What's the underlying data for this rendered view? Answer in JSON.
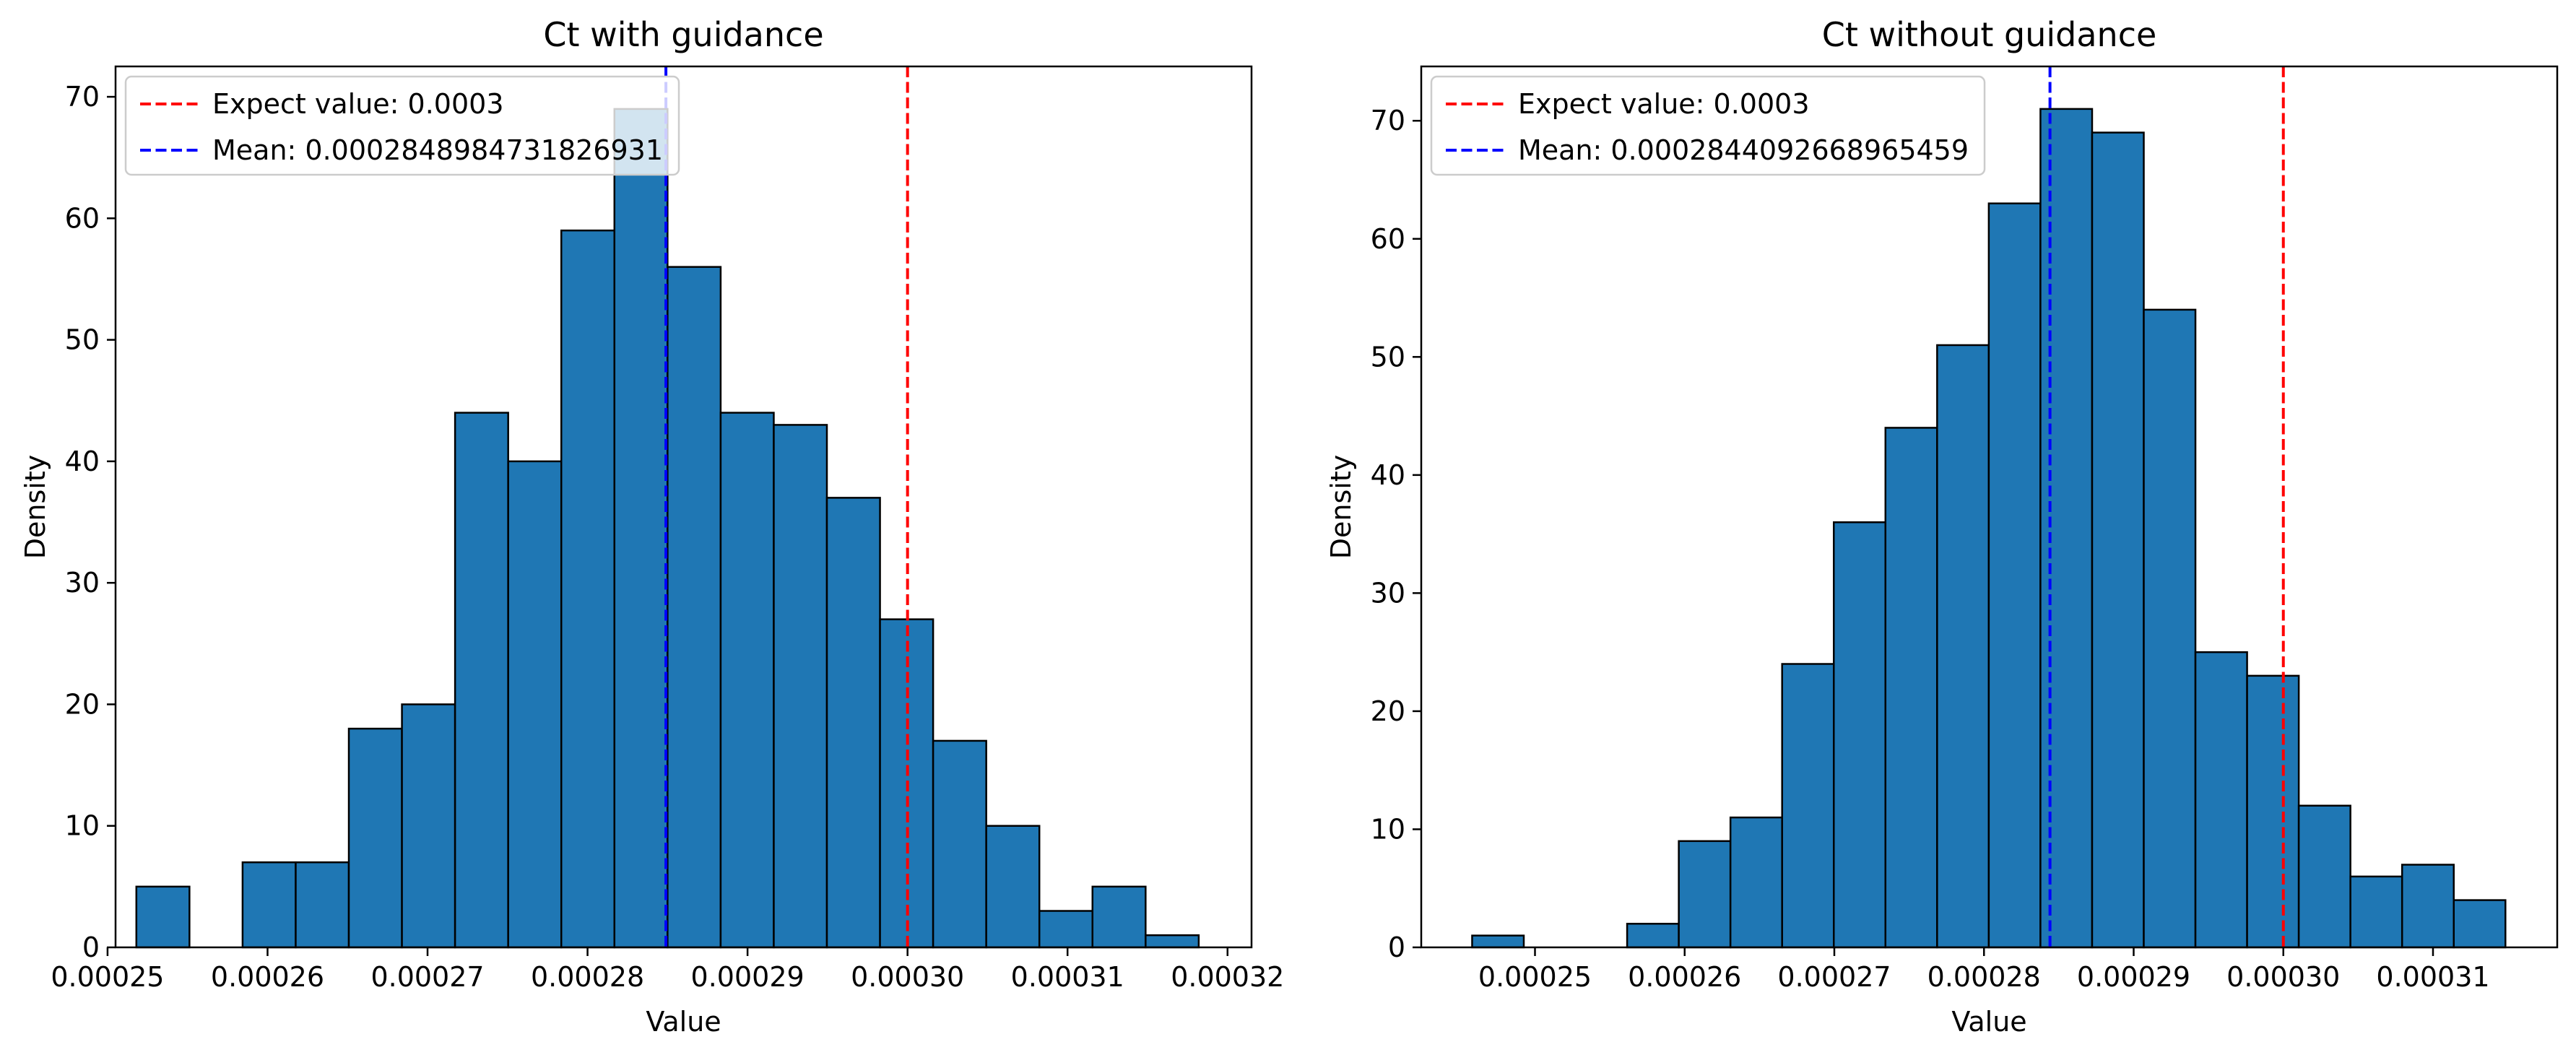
{
  "colors": {
    "bar": "#1f77b4",
    "bar_edge": "#000000",
    "expected_line": "#ff0000",
    "mean_line": "#0000ff"
  },
  "chart_data": [
    {
      "type": "bar",
      "title": "Ct with guidance",
      "xlabel": "Value",
      "ylabel": "Density",
      "xlim": [
        0.0002505,
        0.0003215
      ],
      "ylim": [
        0,
        72.5
      ],
      "xticks": [
        0.00025,
        0.00026,
        0.00027,
        0.00028,
        0.00029,
        0.0003,
        0.00031,
        0.00032
      ],
      "xtick_labels": [
        "0.00025",
        "0.00026",
        "0.00027",
        "0.00028",
        "0.00029",
        "0.00030",
        "0.00031",
        "0.00032"
      ],
      "yticks": [
        0,
        10,
        20,
        30,
        40,
        50,
        60,
        70
      ],
      "ytick_labels": [
        "0",
        "10",
        "20",
        "30",
        "40",
        "50",
        "60",
        "70"
      ],
      "bin_start": 0.0002518,
      "bin_width": 3.32e-06,
      "values": [
        5,
        0,
        7,
        7,
        18,
        20,
        44,
        40,
        59,
        69,
        56,
        44,
        43,
        37,
        27,
        17,
        10,
        3,
        5,
        1
      ],
      "vlines": [
        {
          "key": "expected",
          "x": 0.0003,
          "label": "Expect value: 0.0003"
        },
        {
          "key": "mean",
          "x": 0.0002848984731826931,
          "label": "Mean: 0.0002848984731826931"
        }
      ],
      "legend_position": "upper left",
      "grid": false
    },
    {
      "type": "bar",
      "title": "Ct without guidance",
      "xlabel": "Value",
      "ylabel": "Density",
      "xlim": [
        0.0002424,
        0.0003183
      ],
      "ylim": [
        0,
        74.6
      ],
      "xticks": [
        0.00025,
        0.00026,
        0.00027,
        0.00028,
        0.00029,
        0.0003,
        0.00031
      ],
      "xtick_labels": [
        "0.00025",
        "0.00026",
        "0.00027",
        "0.00028",
        "0.00029",
        "0.00030",
        "0.00031"
      ],
      "yticks": [
        0,
        10,
        20,
        30,
        40,
        50,
        60,
        70
      ],
      "ytick_labels": [
        "0",
        "10",
        "20",
        "30",
        "40",
        "50",
        "60",
        "70"
      ],
      "bin_start": 0.0002458,
      "bin_width": 3.452e-06,
      "values": [
        1,
        0,
        0,
        2,
        9,
        11,
        24,
        36,
        44,
        51,
        63,
        71,
        69,
        54,
        25,
        23,
        12,
        6,
        7,
        4
      ],
      "vlines": [
        {
          "key": "expected",
          "x": 0.0003,
          "label": "Expect value: 0.0003"
        },
        {
          "key": "mean",
          "x": 0.0002844092668965459,
          "label": "Mean: 0.0002844092668965459"
        }
      ],
      "legend_position": "upper left",
      "grid": false
    }
  ]
}
